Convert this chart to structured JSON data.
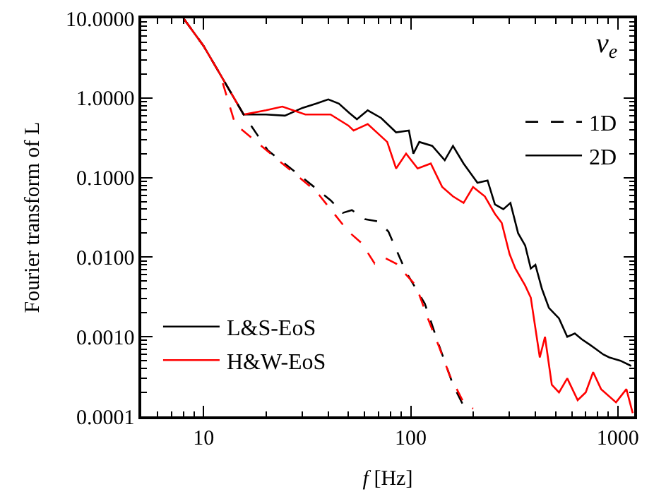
{
  "chart_data": {
    "type": "line",
    "xlabel": "f [Hz]",
    "ylabel": "Fourier transform of L",
    "log": "xy",
    "legend": "bottom left",
    "xlim": [
      5,
      1200
    ],
    "ylim": [
      0.0001,
      10
    ],
    "xticks": [
      10,
      100,
      1000
    ],
    "yticks": [
      {
        "value": 10,
        "label": "10.0000"
      },
      {
        "value": 1,
        "label": "1.0000"
      },
      {
        "value": 0.1,
        "label": "0.1000"
      },
      {
        "value": 0.01,
        "label": "0.0100"
      },
      {
        "value": 0.001,
        "label": "0.0010"
      },
      {
        "value": 0.0001,
        "label": "0.0001"
      }
    ],
    "annotations": [
      "ν$_{e}$",
      "1D",
      "2D"
    ],
    "series": [
      {
        "name": "L&S-EoS",
        "color": "#000000",
        "line_style": "solid",
        "x": [
          8,
          10,
          12,
          15.6,
          20,
          24.7,
          30,
          35,
          40,
          45,
          50.5,
          55,
          62,
          72,
          85,
          98,
          103,
          110,
          127,
          146,
          160,
          180,
          210,
          235,
          255,
          280,
          303,
          330,
          357,
          380,
          400,
          430,
          465,
          520,
          570,
          620,
          670,
          730,
          785,
          850,
          910,
          1030,
          1160
        ],
        "values": [
          10,
          4.5,
          2,
          0.62,
          0.62,
          0.6,
          0.75,
          0.85,
          0.96,
          0.85,
          0.65,
          0.54,
          0.7,
          0.56,
          0.37,
          0.39,
          0.2,
          0.28,
          0.25,
          0.165,
          0.25,
          0.15,
          0.086,
          0.092,
          0.046,
          0.04,
          0.048,
          0.02,
          0.014,
          0.0072,
          0.008,
          0.004,
          0.0023,
          0.0017,
          0.001,
          0.0011,
          0.00093,
          0.0008,
          0.0007,
          0.0006,
          0.00055,
          0.0005,
          0.00043
        ]
      },
      {
        "name": "H&W-EoS",
        "color": "#ff0000",
        "line_style": "solid",
        "x": [
          8,
          10,
          12,
          15.6,
          20,
          24,
          31,
          41,
          50,
          53,
          62,
          77,
          85,
          95,
          108,
          125,
          142,
          160,
          180,
          200,
          228,
          255,
          275,
          300,
          320,
          357,
          380,
          420,
          445,
          480,
          520,
          570,
          640,
          700,
          760,
          830,
          980,
          1100,
          1180
        ],
        "values": [
          10,
          4.5,
          2,
          0.62,
          0.7,
          0.78,
          0.62,
          0.62,
          0.45,
          0.39,
          0.47,
          0.28,
          0.13,
          0.2,
          0.13,
          0.15,
          0.076,
          0.058,
          0.048,
          0.076,
          0.058,
          0.035,
          0.027,
          0.011,
          0.0072,
          0.0044,
          0.0031,
          0.00055,
          0.001,
          0.00025,
          0.0002,
          0.0003,
          0.00016,
          0.0002,
          0.00036,
          0.00022,
          0.00015,
          0.00022,
          0.00011
        ]
      },
      {
        "color": "#000000",
        "line_style": "dashed",
        "x": [
          8,
          10,
          12,
          15.6,
          20.4,
          30,
          41,
          47,
          52,
          60,
          70,
          78,
          95,
          117,
          137,
          160,
          180
        ],
        "values": [
          10,
          4.5,
          2,
          0.62,
          0.22,
          0.1,
          0.052,
          0.036,
          0.039,
          0.03,
          0.028,
          0.021,
          0.0065,
          0.0026,
          0.00078,
          0.00025,
          0.000135
        ]
      },
      {
        "color": "#ff0000",
        "line_style": "dashed",
        "x": [
          8,
          10,
          12,
          14.2,
          24,
          35,
          50,
          58,
          67,
          75,
          85,
          106,
          121,
          137,
          154,
          180,
          200
        ],
        "values": [
          10,
          4.5,
          2,
          0.47,
          0.15,
          0.067,
          0.021,
          0.015,
          0.0083,
          0.0098,
          0.0083,
          0.0044,
          0.0017,
          0.00075,
          0.00033,
          0.00015,
          0.000125
        ]
      }
    ]
  }
}
